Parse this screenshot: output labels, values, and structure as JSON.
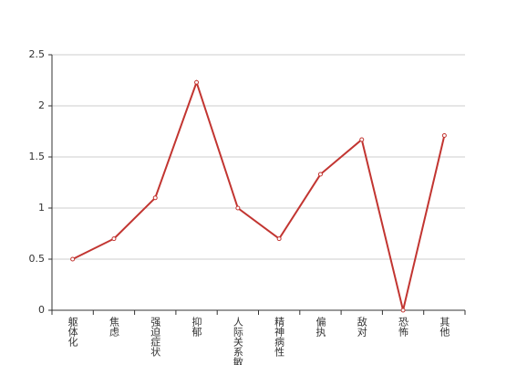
{
  "chart_data": {
    "type": "line",
    "categories": [
      "躯体化",
      "焦虑",
      "强迫症状",
      "抑郁",
      "人际关系敏感",
      "精神病性",
      "偏执",
      "敌对",
      "恐怖",
      "其他"
    ],
    "values": [
      0.5,
      0.7,
      1.1,
      2.23,
      1.0,
      0.7,
      1.33,
      1.67,
      0,
      1.71
    ],
    "color": "#c23531",
    "ylim": [
      0,
      2.5
    ],
    "yticks": [
      0,
      0.5,
      1,
      1.5,
      2,
      2.5
    ],
    "grid": true
  }
}
